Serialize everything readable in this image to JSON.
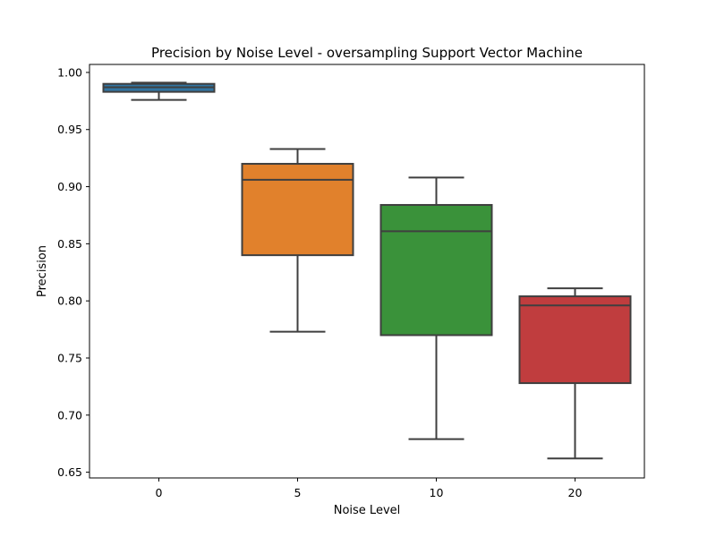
{
  "chart_data": {
    "type": "box",
    "title": "Precision by Noise Level - oversampling Support Vector Machine",
    "xlabel": "Noise Level",
    "ylabel": "Precision",
    "categories": [
      "0",
      "5",
      "10",
      "20"
    ],
    "ylim": [
      0.645,
      1.007
    ],
    "yticks": [
      0.65,
      0.7,
      0.75,
      0.8,
      0.85,
      0.9,
      0.95,
      1.0
    ],
    "ytick_labels": [
      "0.65",
      "0.70",
      "0.75",
      "0.80",
      "0.85",
      "0.90",
      "0.95",
      "1.00"
    ],
    "grid": false,
    "legend": "none",
    "boxes": [
      {
        "category": "0",
        "whisker_low": 0.976,
        "q1": 0.983,
        "median": 0.987,
        "q3": 0.99,
        "whisker_high": 0.991,
        "color": "#3274a1"
      },
      {
        "category": "5",
        "whisker_low": 0.773,
        "q1": 0.84,
        "median": 0.906,
        "q3": 0.92,
        "whisker_high": 0.933,
        "color": "#e1812c"
      },
      {
        "category": "10",
        "whisker_low": 0.679,
        "q1": 0.77,
        "median": 0.861,
        "q3": 0.884,
        "whisker_high": 0.908,
        "color": "#3a923a"
      },
      {
        "category": "20",
        "whisker_low": 0.662,
        "q1": 0.728,
        "median": 0.796,
        "q3": 0.804,
        "whisker_high": 0.811,
        "color": "#c03d3e"
      }
    ],
    "line_color": "#3f3f3f"
  }
}
